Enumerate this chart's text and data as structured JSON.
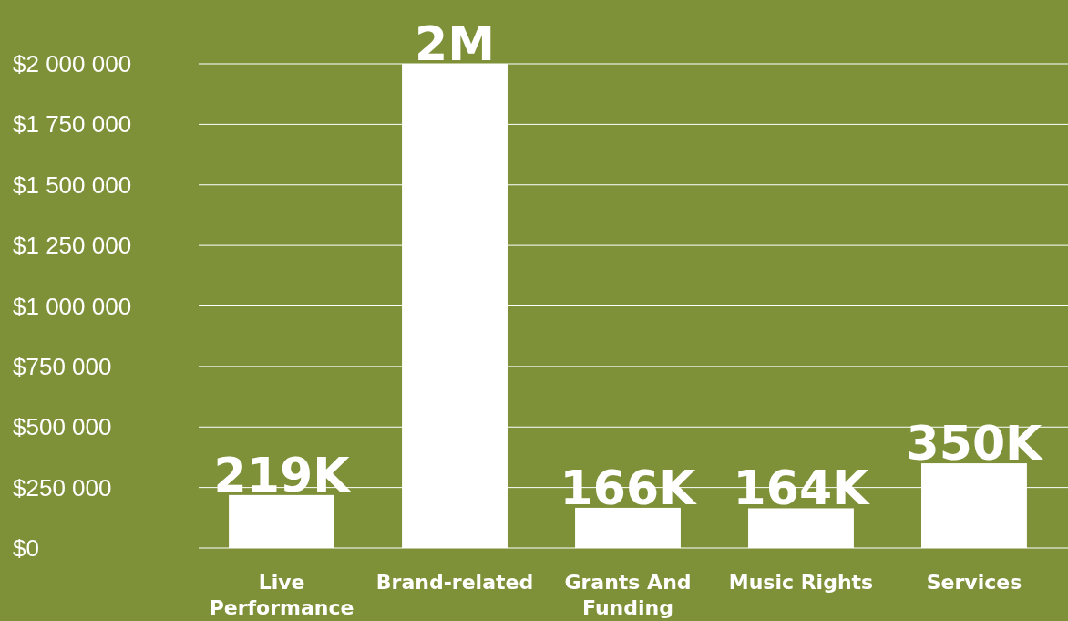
{
  "chart_data": {
    "type": "bar",
    "categories": [
      "Live Performance",
      "Brand-related",
      "Grants And Funding",
      "Music Rights",
      "Services"
    ],
    "values": [
      219000,
      2000000,
      166000,
      164000,
      350000
    ],
    "value_labels": [
      "219K",
      "2M",
      "166K",
      "164K",
      "350K"
    ],
    "color": "#ffffff",
    "ylim": [
      0,
      2000000
    ],
    "yticks": [
      {
        "value": 0,
        "label": "$0"
      },
      {
        "value": 250000,
        "label": "$250 000"
      },
      {
        "value": 500000,
        "label": "$500 000"
      },
      {
        "value": 750000,
        "label": "$750 000"
      },
      {
        "value": 1000000,
        "label": "$1 000 000"
      },
      {
        "value": 1250000,
        "label": "$1 250 000"
      },
      {
        "value": 1500000,
        "label": "$1 500 000"
      },
      {
        "value": 1750000,
        "label": "$1 750 000"
      },
      {
        "value": 2000000,
        "label": "$2 000 000"
      }
    ],
    "grid": "y"
  }
}
